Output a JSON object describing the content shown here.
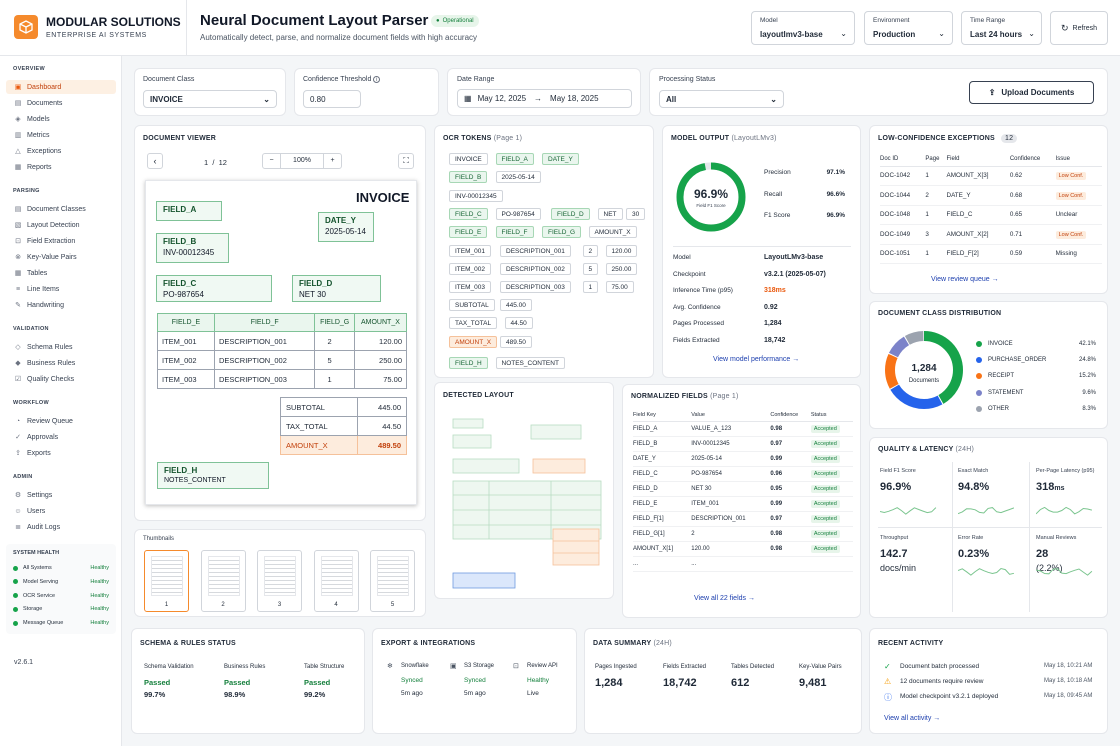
{
  "brand": {
    "name": "MODULAR SOLUTIONS",
    "tagline": "ENTERPRISE AI SYSTEMS"
  },
  "header": {
    "title": "Neural Document Layout Parser",
    "status": "Operational",
    "subtitle": "Automatically detect, parse, and normalize document fields with high accuracy",
    "model": {
      "label": "Model",
      "value": "layoutlmv3-base"
    },
    "environment": {
      "label": "Environment",
      "value": "Production"
    },
    "time_range": {
      "label": "Time Range",
      "value": "Last 24 hours"
    },
    "refresh": "Refresh"
  },
  "sidebar": {
    "sections": [
      {
        "title": "OVERVIEW",
        "items": [
          "Dashboard",
          "Documents",
          "Models",
          "Metrics",
          "Exceptions",
          "Reports"
        ]
      },
      {
        "title": "PARSING",
        "items": [
          "Document Classes",
          "Layout Detection",
          "Field Extraction",
          "Key-Value Pairs",
          "Tables",
          "Line Items",
          "Handwriting"
        ]
      },
      {
        "title": "VALIDATION",
        "items": [
          "Schema Rules",
          "Business Rules",
          "Quality Checks"
        ]
      },
      {
        "title": "WORKFLOW",
        "items": [
          "Review Queue",
          "Approvals",
          "Exports"
        ]
      },
      {
        "title": "ADMIN",
        "items": [
          "Settings",
          "Users",
          "Audit Logs"
        ]
      }
    ],
    "health_title": "SYSTEM HEALTH",
    "health": [
      {
        "name": "All Systems",
        "status": "Healthy"
      },
      {
        "name": "Model Serving",
        "status": "Healthy"
      },
      {
        "name": "OCR Service",
        "status": "Healthy"
      },
      {
        "name": "Storage",
        "status": "Healthy"
      },
      {
        "name": "Message Queue",
        "status": "Healthy"
      }
    ],
    "version": "v2.6.1"
  },
  "filters": {
    "doc_class": {
      "label": "Document Class",
      "value": "INVOICE"
    },
    "confidence": {
      "label": "Confidence Threshold",
      "value": "0.80"
    },
    "date_range": {
      "label": "Date Range",
      "from": "May 12, 2025",
      "to": "May 18, 2025"
    },
    "status": {
      "label": "Processing Status",
      "value": "All"
    },
    "upload": "Upload Documents"
  },
  "viewer": {
    "title": "DOCUMENT VIEWER",
    "page": "1",
    "sep": "/",
    "pages": "12",
    "zoom": "100%",
    "minus": "−",
    "plus": "+",
    "invoice": {
      "heading": "INVOICE",
      "field_a": "FIELD_A",
      "date_y": {
        "k": "DATE_Y",
        "v": "2025-05-14"
      },
      "field_b": {
        "k": "FIELD_B",
        "v": "INV-00012345"
      },
      "field_c": {
        "k": "FIELD_C",
        "v": "PO-987654"
      },
      "field_d": {
        "k": "FIELD_D",
        "v": "NET 30"
      },
      "table_head": [
        "FIELD_E",
        "FIELD_F",
        "FIELD_G",
        "AMOUNT_X"
      ],
      "rows": [
        [
          "ITEM_001",
          "DESCRIPTION_001",
          "2",
          "120.00"
        ],
        [
          "ITEM_002",
          "DESCRIPTION_002",
          "5",
          "250.00"
        ],
        [
          "ITEM_003",
          "DESCRIPTION_003",
          "1",
          "75.00"
        ]
      ],
      "totals": [
        [
          "SUBTOTAL",
          "445.00"
        ],
        [
          "TAX_TOTAL",
          "44.50"
        ],
        [
          "AMOUNT_X",
          "489.50"
        ]
      ],
      "field_h": {
        "k": "FIELD_H",
        "v": "NOTES_CONTENT"
      }
    },
    "thumbs_title": "Thumbnails",
    "thumbs": [
      "1",
      "2",
      "3",
      "4",
      "5"
    ]
  },
  "ocr": {
    "title": "OCR TOKENS",
    "sub": "(Page 1)",
    "rows": [
      [
        {
          "t": "INVOICE",
          "s": "n"
        },
        {
          "t": "FIELD_A",
          "s": "g"
        },
        {
          "t": "DATE_Y",
          "s": "g"
        }
      ],
      [
        {
          "t": "FIELD_B",
          "s": "g"
        },
        {
          "t": "2025-05-14",
          "s": "n"
        }
      ],
      [
        {
          "t": "INV-00012345",
          "s": "n"
        }
      ],
      [
        {
          "t": "FIELD_C",
          "s": "g"
        },
        {
          "t": "PO-987654",
          "s": "n"
        },
        {
          "t": "FIELD_D",
          "s": "g"
        },
        {
          "t": "NET",
          "s": "n"
        },
        {
          "t": "30",
          "s": "n"
        }
      ],
      [
        {
          "t": "FIELD_E",
          "s": "g"
        },
        {
          "t": "FIELD_F",
          "s": "g"
        },
        {
          "t": "FIELD_G",
          "s": "g"
        },
        {
          "t": "AMOUNT_X",
          "s": "n"
        }
      ],
      [
        {
          "t": "ITEM_001",
          "s": "n"
        },
        {
          "t": "DESCRIPTION_001",
          "s": "n"
        },
        {
          "t": "2",
          "s": "n"
        },
        {
          "t": "120.00",
          "s": "n"
        }
      ],
      [
        {
          "t": "ITEM_002",
          "s": "n"
        },
        {
          "t": "DESCRIPTION_002",
          "s": "n"
        },
        {
          "t": "5",
          "s": "n"
        },
        {
          "t": "250.00",
          "s": "n"
        }
      ],
      [
        {
          "t": "ITEM_003",
          "s": "n"
        },
        {
          "t": "DESCRIPTION_003",
          "s": "n"
        },
        {
          "t": "1",
          "s": "n"
        },
        {
          "t": "75.00",
          "s": "n"
        }
      ],
      [
        {
          "t": "SUBTOTAL",
          "s": "n"
        },
        {
          "t": "445.00",
          "s": "n"
        }
      ],
      [
        {
          "t": "TAX_TOTAL",
          "s": "n"
        },
        {
          "t": "44.50",
          "s": "n"
        }
      ],
      [
        {
          "t": "AMOUNT_X",
          "s": "o"
        },
        {
          "t": "489.50",
          "s": "n"
        }
      ],
      [
        {
          "t": "FIELD_H",
          "s": "g"
        },
        {
          "t": "NOTES_CONTENT",
          "s": "n"
        }
      ]
    ]
  },
  "model_output": {
    "title": "MODEL OUTPUT",
    "sub": "(LayoutLMv3)",
    "score": "96.9%",
    "score_label": "Field F1 Score",
    "score_fraction": 0.969,
    "metrics": [
      [
        "Precision",
        "97.1%"
      ],
      [
        "Recall",
        "96.6%"
      ],
      [
        "F1 Score",
        "96.9%"
      ]
    ],
    "details": [
      [
        "Model",
        "LayoutLMv3-base"
      ],
      [
        "Checkpoint",
        "v3.2.1 (2025-05-07)"
      ],
      [
        "Inference Time (p95)",
        "318ms"
      ],
      [
        "Avg. Confidence",
        "0.92"
      ],
      [
        "Pages Processed",
        "1,284"
      ],
      [
        "Fields Extracted",
        "18,742"
      ]
    ],
    "link": "View model performance"
  },
  "exceptions": {
    "title": "LOW-CONFIDENCE EXCEPTIONS",
    "count": "12",
    "head": [
      "Doc ID",
      "Page",
      "Field",
      "Confidence",
      "Issue"
    ],
    "rows": [
      [
        "DOC-1042",
        "1",
        "AMOUNT_X[3]",
        "0.62",
        "Low Conf."
      ],
      [
        "DOC-1044",
        "2",
        "DATE_Y",
        "0.68",
        "Low Conf."
      ],
      [
        "DOC-1048",
        "1",
        "FIELD_C",
        "0.65",
        "Unclear"
      ],
      [
        "DOC-1049",
        "3",
        "AMOUNT_X[2]",
        "0.71",
        "Low Conf."
      ],
      [
        "DOC-1051",
        "1",
        "FIELD_F[2]",
        "0.59",
        "Missing"
      ]
    ],
    "link": "View review queue"
  },
  "class_dist": {
    "title": "DOCUMENT CLASS DISTRIBUTION",
    "total": "1,284",
    "total_label": "Documents",
    "items": [
      {
        "name": "INVOICE",
        "pct": "42.1%",
        "value": 42.1,
        "color": "#16a34a"
      },
      {
        "name": "PURCHASE_ORDER",
        "pct": "24.8%",
        "value": 24.8,
        "color": "#2563eb"
      },
      {
        "name": "RECEIPT",
        "pct": "15.2%",
        "value": 15.2,
        "color": "#f97316"
      },
      {
        "name": "STATEMENT",
        "pct": "9.6%",
        "value": 9.6,
        "color": "#7c83c9"
      },
      {
        "name": "OTHER",
        "pct": "8.3%",
        "value": 8.3,
        "color": "#9ca3af"
      }
    ]
  },
  "quality": {
    "title": "QUALITY & LATENCY",
    "sub": "(24H)",
    "tiles": [
      {
        "label": "Field F1 Score",
        "value": "96.9%",
        "unit": ""
      },
      {
        "label": "Exact Match",
        "value": "94.8%",
        "unit": ""
      },
      {
        "label": "Per-Page Latency (p95)",
        "value": "318",
        "unit": "ms"
      },
      {
        "label": "Throughput",
        "value": "142.7",
        "unit": "docs/min"
      },
      {
        "label": "Error Rate",
        "value": "0.23%",
        "unit": ""
      },
      {
        "label": "Manual Reviews",
        "value": "28",
        "unit": "(2.2%)"
      }
    ]
  },
  "layout": {
    "title": "DETECTED LAYOUT"
  },
  "normalized": {
    "title": "NORMALIZED FIELDS",
    "sub": "(Page 1)",
    "head": [
      "Field Key",
      "Value",
      "Confidence",
      "Status"
    ],
    "rows": [
      [
        "FIELD_A",
        "VALUE_A_123",
        "0.98",
        "Accepted"
      ],
      [
        "FIELD_B",
        "INV-00012345",
        "0.97",
        "Accepted"
      ],
      [
        "DATE_Y",
        "2025-05-14",
        "0.99",
        "Accepted"
      ],
      [
        "FIELD_C",
        "PO-987654",
        "0.96",
        "Accepted"
      ],
      [
        "FIELD_D",
        "NET 30",
        "0.95",
        "Accepted"
      ],
      [
        "FIELD_E",
        "ITEM_001",
        "0.99",
        "Accepted"
      ],
      [
        "FIELD_F[1]",
        "DESCRIPTION_001",
        "0.97",
        "Accepted"
      ],
      [
        "FIELD_G[1]",
        "2",
        "0.98",
        "Accepted"
      ],
      [
        "AMOUNT_X[1]",
        "120.00",
        "0.98",
        "Accepted"
      ],
      [
        "...",
        "...",
        "",
        ""
      ]
    ],
    "link": "View all 22 fields"
  },
  "schema": {
    "title": "SCHEMA & RULES STATUS",
    "items": [
      [
        "Schema Validation",
        "Passed",
        "99.7%"
      ],
      [
        "Business Rules",
        "Passed",
        "98.9%"
      ],
      [
        "Table Structure",
        "Passed",
        "99.2%"
      ]
    ]
  },
  "export": {
    "title": "EXPORT & INTEGRATIONS",
    "items": [
      [
        "Snowflake",
        "Synced",
        "5m ago"
      ],
      [
        "S3 Storage",
        "Synced",
        "5m ago"
      ],
      [
        "Review API",
        "Healthy",
        "Live"
      ]
    ]
  },
  "summary": {
    "title": "DATA SUMMARY",
    "sub": "(24H)",
    "items": [
      [
        "Pages Ingested",
        "1,284"
      ],
      [
        "Fields Extracted",
        "18,742"
      ],
      [
        "Tables Detected",
        "612"
      ],
      [
        "Key-Value Pairs",
        "9,481"
      ]
    ]
  },
  "activity": {
    "title": "RECENT ACTIVITY",
    "items": [
      {
        "text": "Document batch processed",
        "time": "May 18, 10:21 AM",
        "icon": "check-icon",
        "color": "#16a34a"
      },
      {
        "text": "12 documents require review",
        "time": "May 18, 10:18 AM",
        "icon": "warning-icon",
        "color": "#f59e0b"
      },
      {
        "text": "Model checkpoint v3.2.1 deployed",
        "time": "May 18, 09:45 AM",
        "icon": "info-icon",
        "color": "#2563eb"
      }
    ],
    "link": "View all activity"
  }
}
